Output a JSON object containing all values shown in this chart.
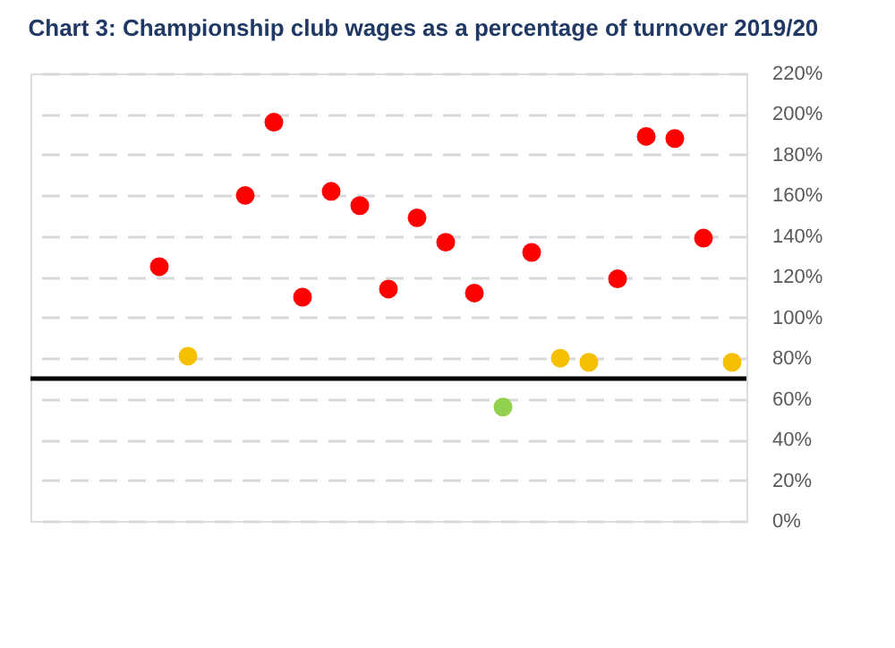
{
  "chart_data": {
    "type": "scatter",
    "title": "Chart 3: Championship club wages as a percentage of turnover 2019/20",
    "categories": [
      null,
      null,
      null,
      null,
      null,
      null,
      null,
      null,
      null,
      null,
      null,
      null,
      null,
      null,
      null,
      null,
      null,
      null,
      null,
      null,
      null,
      null,
      null,
      null,
      null
    ],
    "series": [
      {
        "values": [
          null,
          null,
          null,
          null,
          125,
          81,
          null,
          160,
          196,
          110,
          162,
          155,
          114,
          149,
          137,
          112,
          56,
          132,
          80,
          78,
          119,
          189,
          188,
          139,
          78
        ],
        "colors": [
          null,
          null,
          null,
          null,
          "#ff0000",
          "#f5c000",
          null,
          "#ff0000",
          "#ff0000",
          "#ff0000",
          "#ff0000",
          "#ff0000",
          "#ff0000",
          "#ff0000",
          "#ff0000",
          "#ff0000",
          "#92d050",
          "#ff0000",
          "#f5c000",
          "#f5c000",
          "#ff0000",
          "#ff0000",
          "#ff0000",
          "#ff0000",
          "#f5c000"
        ]
      }
    ],
    "ylim": [
      0,
      220
    ],
    "yticks": [
      {
        "value": 0,
        "label": "0%"
      },
      {
        "value": 20,
        "label": "20%"
      },
      {
        "value": 40,
        "label": "40%"
      },
      {
        "value": 60,
        "label": "60%"
      },
      {
        "value": 80,
        "label": "80%"
      },
      {
        "value": 100,
        "label": "100%"
      },
      {
        "value": 120,
        "label": "120%"
      },
      {
        "value": 140,
        "label": "140%"
      },
      {
        "value": 160,
        "label": "160%"
      },
      {
        "value": 180,
        "label": "180%"
      },
      {
        "value": 200,
        "label": "200%"
      },
      {
        "value": 220,
        "label": "220%"
      }
    ],
    "ref_lines": [
      {
        "axis": "y",
        "value": 70,
        "color": "#000000"
      }
    ],
    "grid": "y",
    "marker": "circle",
    "tick_labels": "y"
  }
}
